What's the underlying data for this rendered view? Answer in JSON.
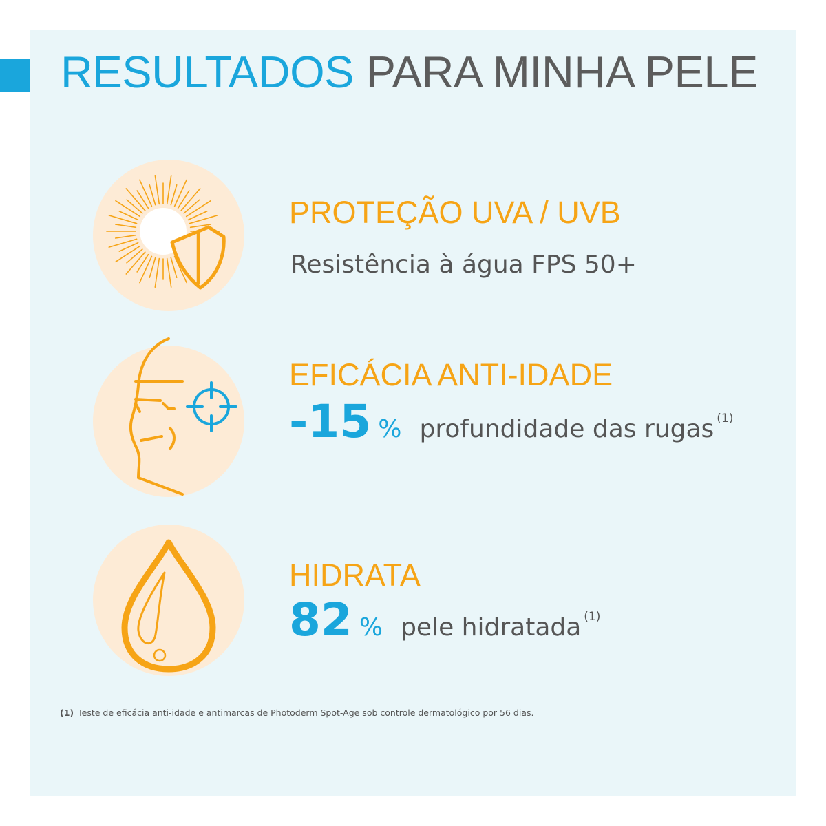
{
  "header": {
    "title_highlight": "RESULTADOS",
    "title_rest": "PARA MINHA PELE"
  },
  "colors": {
    "accent_blue": "#1aa6dc",
    "accent_orange": "#f6a416",
    "circle_fill": "#fdebd6",
    "panel_bg": "#eaf6f9",
    "text_grey": "#555555"
  },
  "benefits": [
    {
      "icon": "sun-shield-icon",
      "heading": "PROTEÇÃO UVA / UVB",
      "description": "Resistência à água FPS 50+"
    },
    {
      "icon": "face-target-icon",
      "heading": "EFICÁCIA ANTI-IDADE",
      "stat_value": "-15",
      "stat_unit": "%",
      "stat_text": "profundidade das rugas",
      "reference": "(1)"
    },
    {
      "icon": "water-drop-icon",
      "heading": "HIDRATA",
      "stat_value": "82",
      "stat_unit": "%",
      "stat_text": "pele hidratada",
      "reference": "(1)"
    }
  ],
  "footnote": {
    "marker": "(1)",
    "text": "Teste de eficácia anti-idade e antimarcas de Photoderm Spot-Age sob controle dermatológico por 56 dias."
  }
}
